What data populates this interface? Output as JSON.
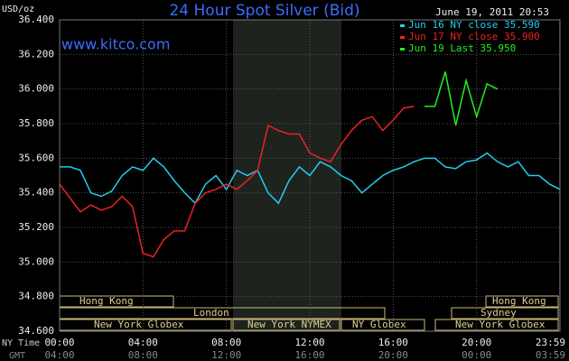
{
  "chart_data": {
    "type": "line",
    "title": "24 Hour Spot Silver (Bid)",
    "timestamp": "June 19, 2011 20:53",
    "y_label": "USD/oz",
    "watermark": "www.kitco.com",
    "x_row_labels": [
      "NY Time",
      "GMT"
    ],
    "sessions": [
      "Hong Kong",
      "London",
      "New York Globex",
      "New York NYMEX",
      "NY Globex",
      "Sydney",
      "Hong Kong",
      "New York Globex"
    ],
    "x": [
      0,
      0.5,
      1,
      1.5,
      2,
      2.5,
      3,
      3.5,
      4,
      4.5,
      5,
      5.5,
      6,
      6.5,
      7,
      7.5,
      8,
      8.5,
      9,
      9.5,
      10,
      10.5,
      11,
      11.5,
      12,
      12.5,
      13,
      13.5,
      14,
      14.5,
      15,
      15.5,
      16,
      16.5,
      17,
      17.5,
      18,
      18.5,
      19,
      19.5,
      20,
      20.5,
      21,
      21.5,
      22,
      22.5,
      23,
      23.5,
      24
    ],
    "xlim": [
      0,
      24
    ],
    "xticks": [
      {
        "value": 0,
        "label": "00:00"
      },
      {
        "value": 4,
        "label": "04:00"
      },
      {
        "value": 8,
        "label": "08:00"
      },
      {
        "value": 12,
        "label": "12:00"
      },
      {
        "value": 16,
        "label": "16:00"
      },
      {
        "value": 20,
        "label": "20:00"
      },
      {
        "value": 23.983,
        "label": "23:59"
      }
    ],
    "x2_tick_labels": [
      "04:00",
      "08:00",
      "12:00",
      "16:00",
      "20:00",
      "00:00",
      "03:59"
    ],
    "ylim": [
      34.6,
      36.4
    ],
    "yticks": [
      {
        "value": 34.6,
        "label": "34.600"
      },
      {
        "value": 34.8,
        "label": "34.800"
      },
      {
        "value": 35,
        "label": "35.000"
      },
      {
        "value": 35.2,
        "label": "35.200"
      },
      {
        "value": 35.4,
        "label": "35.400"
      },
      {
        "value": 35.6,
        "label": "35.600"
      },
      {
        "value": 35.8,
        "label": "35.800"
      },
      {
        "value": 36,
        "label": "36.000"
      },
      {
        "value": 36.2,
        "label": "36.200"
      },
      {
        "value": 36.4,
        "label": "36.400"
      }
    ],
    "grid": true,
    "series": [
      {
        "name": "Jun 16 NY close 35.590",
        "color": "#22ccee",
        "values": [
          35.55,
          35.55,
          35.53,
          35.4,
          35.38,
          35.41,
          35.5,
          35.55,
          35.53,
          35.6,
          35.55,
          35.47,
          35.4,
          35.34,
          35.45,
          35.5,
          35.42,
          35.53,
          35.5,
          35.53,
          35.4,
          35.34,
          35.47,
          35.55,
          35.5,
          35.58,
          35.55,
          35.5,
          35.47,
          35.4,
          35.45,
          35.5,
          35.53,
          35.55,
          35.58,
          35.6,
          35.6,
          35.55,
          35.54,
          35.58,
          35.59,
          35.63,
          35.58,
          35.55,
          35.58,
          35.5,
          35.5,
          35.45,
          35.42
        ]
      },
      {
        "name": "Jun 17 NY close 35.900",
        "color": "#ee2222",
        "values": [
          35.45,
          35.37,
          35.29,
          35.33,
          35.3,
          35.32,
          35.38,
          35.32,
          35.05,
          35.03,
          35.13,
          35.18,
          35.18,
          35.34,
          35.4,
          35.42,
          35.45,
          35.42,
          35.47,
          35.53,
          35.79,
          35.76,
          35.74,
          35.74,
          35.63,
          35.6,
          35.58,
          35.68,
          35.76,
          35.82,
          35.84,
          35.76,
          35.82,
          35.89,
          35.9,
          null,
          null,
          null,
          null,
          null,
          null,
          null,
          null,
          null,
          null,
          null,
          null,
          null,
          null
        ]
      },
      {
        "name": "Jun 19 Last 35.950",
        "color": "#22ee22",
        "values": [
          null,
          null,
          null,
          null,
          null,
          null,
          null,
          null,
          null,
          null,
          null,
          null,
          null,
          null,
          null,
          null,
          null,
          null,
          null,
          null,
          null,
          null,
          null,
          null,
          null,
          null,
          null,
          null,
          null,
          null,
          null,
          null,
          null,
          null,
          null,
          35.9,
          35.9,
          36.1,
          35.79,
          36.05,
          35.84,
          36.03,
          36.0,
          null,
          null,
          null,
          null,
          null,
          null
        ]
      }
    ]
  }
}
